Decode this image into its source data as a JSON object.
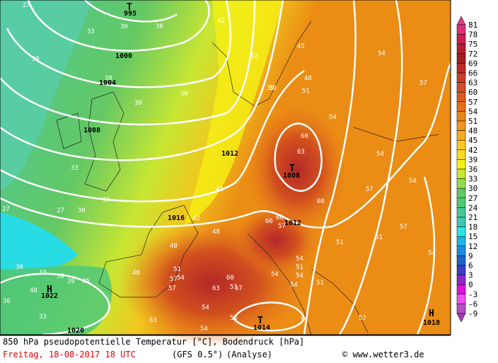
{
  "map": {
    "pressure_labels": [
      "995",
      "1000",
      "1004",
      "1008",
      "1012",
      "1016",
      "1008",
      "1012",
      "1022",
      "1020",
      "1014",
      "1018"
    ],
    "centers": [
      "T",
      "T",
      "H",
      "T",
      "H"
    ],
    "temperature_labels": [
      "27",
      "30",
      "33",
      "30",
      "30",
      "30",
      "30",
      "30",
      "33",
      "27",
      "30",
      "30",
      "30",
      "27",
      "33",
      "36",
      "39",
      "42",
      "42",
      "42",
      "39",
      "45",
      "48",
      "51",
      "54",
      "54",
      "57",
      "60",
      "63",
      "60",
      "57",
      "54",
      "54",
      "57",
      "54",
      "51",
      "51",
      "48",
      "48",
      "51",
      "54",
      "57",
      "60",
      "63",
      "66",
      "60",
      "57",
      "54",
      "51",
      "54",
      "57",
      "54",
      "54",
      "51",
      "57",
      "63",
      "54",
      "54",
      "51",
      "48",
      "45",
      "48",
      "42",
      "39",
      "36",
      "33",
      "51",
      "54",
      "57"
    ]
  },
  "colorbar": {
    "labels": [
      81,
      78,
      75,
      72,
      69,
      66,
      63,
      60,
      57,
      54,
      51,
      48,
      45,
      42,
      39,
      36,
      33,
      30,
      27,
      24,
      21,
      18,
      15,
      12,
      9,
      6,
      3,
      0,
      -3,
      -6,
      -9
    ]
  },
  "footer": {
    "title": "850 hPa pseudopotentielle Temperatur [°C], Bodendruck [hPa]",
    "date": "Freitag, 18-08-2017  18 UTC",
    "model": "(GFS 0.5°)",
    "run": "(Analyse)",
    "credit": "© www.wetter3.de"
  }
}
